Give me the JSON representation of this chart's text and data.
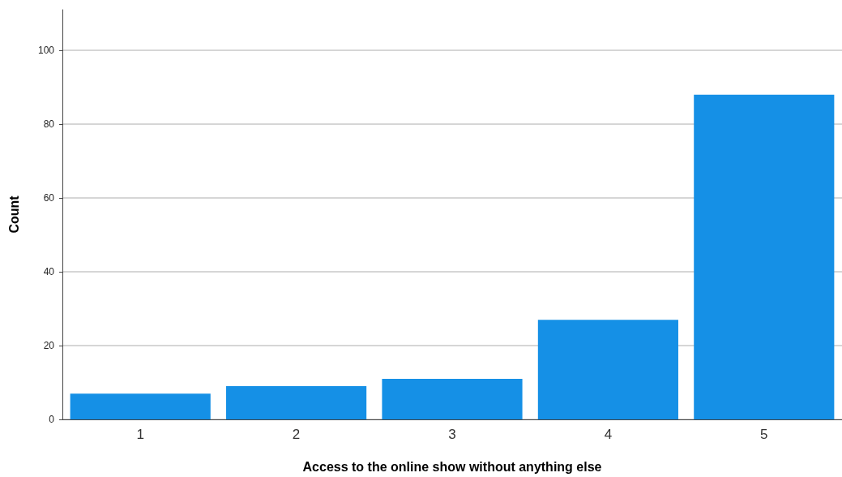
{
  "chart_data": {
    "type": "bar",
    "xlabel": "Access to the online show without anything else",
    "ylabel": "Count",
    "categories": [
      "1",
      "2",
      "3",
      "4",
      "5"
    ],
    "values": [
      7,
      9,
      11,
      27,
      88
    ],
    "color": "#1590e6",
    "ylim": [
      0,
      111
    ],
    "yticks": [
      0,
      20,
      40,
      60,
      80,
      100
    ],
    "grid": "y"
  }
}
